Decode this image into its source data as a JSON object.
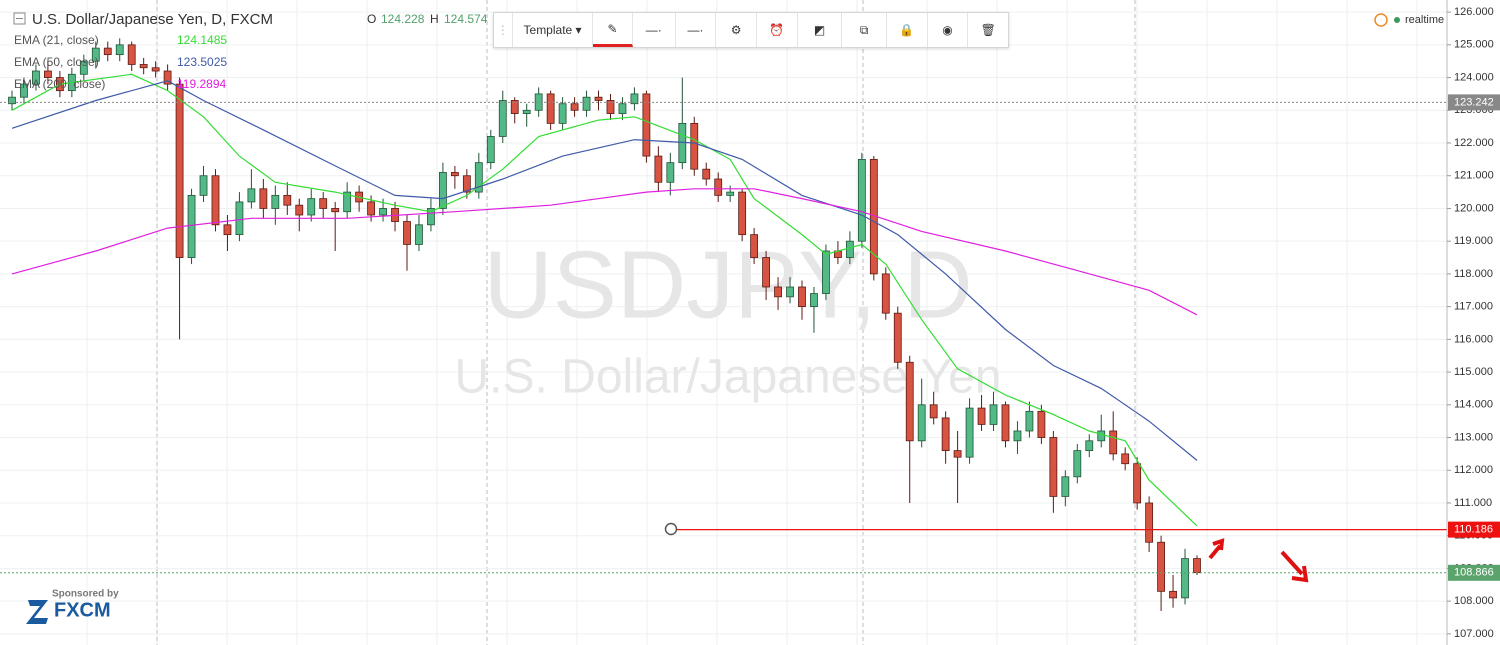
{
  "header": {
    "symbol_title": "U.S. Dollar/Japanese Yen, D, FXCM",
    "o_label": "O",
    "o_value": 124.228,
    "h_label": "H",
    "h_value": 124.574
  },
  "toolbar": {
    "template": "Template"
  },
  "status": "realtime",
  "sponsor": {
    "label": "Sponsored by",
    "brand": "FXCM"
  },
  "chart_data": {
    "type": "candlestick",
    "watermark": "USDJPY, D",
    "watermark_subtitle": "U.S. Dollar/Japanese Yen",
    "up_color": "#53b987",
    "down_color": "#d75442",
    "ohlc": [
      [
        123.2,
        123.6,
        123.0,
        123.4
      ],
      [
        123.4,
        124.0,
        123.2,
        123.8
      ],
      [
        123.8,
        124.4,
        123.6,
        124.2
      ],
      [
        124.2,
        124.5,
        123.8,
        124.0
      ],
      [
        124.0,
        124.2,
        123.4,
        123.6
      ],
      [
        123.6,
        124.3,
        123.4,
        124.1
      ],
      [
        124.1,
        124.7,
        123.9,
        124.5
      ],
      [
        124.5,
        125.1,
        124.3,
        124.9
      ],
      [
        124.9,
        125.1,
        124.5,
        124.7
      ],
      [
        124.7,
        125.2,
        124.5,
        125.0
      ],
      [
        125.0,
        125.1,
        124.2,
        124.4
      ],
      [
        124.4,
        124.6,
        124.1,
        124.3
      ],
      [
        124.3,
        124.5,
        124.0,
        124.2
      ],
      [
        124.2,
        124.4,
        123.6,
        123.8
      ],
      [
        123.8,
        124.0,
        116.0,
        118.5
      ],
      [
        118.5,
        120.6,
        118.3,
        120.4
      ],
      [
        120.4,
        121.3,
        120.2,
        121.0
      ],
      [
        121.0,
        121.2,
        119.3,
        119.5
      ],
      [
        119.5,
        119.8,
        118.7,
        119.2
      ],
      [
        119.2,
        120.5,
        119.0,
        120.2
      ],
      [
        120.2,
        121.2,
        120.0,
        120.6
      ],
      [
        120.6,
        120.9,
        119.7,
        120.0
      ],
      [
        120.0,
        120.7,
        119.5,
        120.4
      ],
      [
        120.4,
        120.8,
        119.8,
        120.1
      ],
      [
        120.1,
        120.3,
        119.3,
        119.8
      ],
      [
        119.8,
        120.6,
        119.6,
        120.3
      ],
      [
        120.3,
        120.5,
        119.7,
        120.0
      ],
      [
        120.0,
        120.2,
        118.7,
        119.9
      ],
      [
        119.9,
        120.8,
        119.7,
        120.5
      ],
      [
        120.5,
        120.7,
        119.9,
        120.2
      ],
      [
        120.2,
        120.4,
        119.6,
        119.8
      ],
      [
        119.8,
        120.3,
        119.6,
        120.0
      ],
      [
        120.0,
        120.2,
        119.3,
        119.6
      ],
      [
        119.6,
        119.8,
        118.1,
        118.9
      ],
      [
        118.9,
        119.8,
        118.7,
        119.5
      ],
      [
        119.5,
        120.3,
        119.3,
        120.0
      ],
      [
        120.0,
        121.4,
        119.8,
        121.1
      ],
      [
        121.1,
        121.3,
        120.6,
        121.0
      ],
      [
        121.0,
        121.2,
        120.3,
        120.5
      ],
      [
        120.5,
        121.7,
        120.3,
        121.4
      ],
      [
        121.4,
        122.4,
        121.2,
        122.2
      ],
      [
        122.2,
        123.6,
        122.0,
        123.3
      ],
      [
        123.3,
        123.4,
        122.6,
        122.9
      ],
      [
        122.9,
        123.2,
        122.5,
        123.0
      ],
      [
        123.0,
        123.7,
        122.8,
        123.5
      ],
      [
        123.5,
        123.6,
        122.4,
        122.6
      ],
      [
        122.6,
        123.4,
        122.4,
        123.2
      ],
      [
        123.2,
        123.4,
        122.8,
        123.0
      ],
      [
        123.0,
        123.6,
        122.8,
        123.4
      ],
      [
        123.4,
        123.6,
        123.0,
        123.3
      ],
      [
        123.3,
        123.5,
        122.7,
        122.9
      ],
      [
        122.9,
        123.4,
        122.7,
        123.2
      ],
      [
        123.2,
        123.7,
        123.0,
        123.5
      ],
      [
        123.5,
        123.6,
        121.4,
        121.6
      ],
      [
        121.6,
        121.9,
        120.5,
        120.8
      ],
      [
        120.8,
        121.7,
        120.4,
        121.4
      ],
      [
        121.4,
        124.0,
        121.2,
        122.6
      ],
      [
        122.6,
        122.8,
        121.0,
        121.2
      ],
      [
        121.2,
        121.4,
        120.7,
        120.9
      ],
      [
        120.9,
        121.1,
        120.2,
        120.4
      ],
      [
        120.4,
        120.7,
        120.2,
        120.5
      ],
      [
        120.5,
        120.6,
        119.0,
        119.2
      ],
      [
        119.2,
        119.4,
        118.3,
        118.5
      ],
      [
        118.5,
        118.7,
        117.2,
        117.6
      ],
      [
        117.6,
        117.9,
        116.9,
        117.3
      ],
      [
        117.3,
        117.9,
        117.1,
        117.6
      ],
      [
        117.6,
        117.8,
        116.6,
        117.0
      ],
      [
        117.0,
        117.6,
        116.2,
        117.4
      ],
      [
        117.4,
        118.9,
        117.2,
        118.7
      ],
      [
        118.7,
        119.0,
        118.3,
        118.5
      ],
      [
        118.5,
        119.3,
        118.3,
        119.0
      ],
      [
        119.0,
        121.7,
        118.8,
        121.5
      ],
      [
        121.5,
        121.6,
        117.8,
        118.0
      ],
      [
        118.0,
        118.2,
        116.6,
        116.8
      ],
      [
        116.8,
        117.0,
        115.1,
        115.3
      ],
      [
        115.3,
        115.5,
        111.0,
        112.9
      ],
      [
        112.9,
        114.8,
        112.7,
        114.0
      ],
      [
        114.0,
        114.4,
        113.4,
        113.6
      ],
      [
        113.6,
        113.8,
        112.2,
        112.6
      ],
      [
        112.6,
        113.2,
        111.0,
        112.4
      ],
      [
        112.4,
        114.2,
        112.2,
        113.9
      ],
      [
        113.9,
        114.3,
        113.2,
        113.4
      ],
      [
        113.4,
        114.4,
        113.2,
        114.0
      ],
      [
        114.0,
        114.1,
        112.7,
        112.9
      ],
      [
        112.9,
        113.5,
        112.5,
        113.2
      ],
      [
        113.2,
        114.1,
        113.0,
        113.8
      ],
      [
        113.8,
        114.0,
        112.8,
        113.0
      ],
      [
        113.0,
        113.2,
        110.7,
        111.2
      ],
      [
        111.2,
        112.0,
        110.9,
        111.8
      ],
      [
        111.8,
        112.8,
        111.6,
        112.6
      ],
      [
        112.6,
        113.1,
        112.4,
        112.9
      ],
      [
        112.9,
        113.7,
        112.7,
        113.2
      ],
      [
        113.2,
        113.8,
        112.3,
        112.5
      ],
      [
        112.5,
        112.7,
        112.0,
        112.2
      ],
      [
        112.2,
        112.4,
        110.8,
        111.0
      ],
      [
        111.0,
        111.2,
        109.5,
        109.8
      ],
      [
        109.8,
        110.0,
        107.7,
        108.3
      ],
      [
        108.3,
        108.8,
        107.8,
        108.1
      ],
      [
        108.1,
        109.6,
        107.9,
        109.3
      ],
      [
        109.3,
        109.4,
        108.8,
        108.87
      ]
    ],
    "series": [
      {
        "name": "EMA (21, close)",
        "color": "#33dd33",
        "last_value": 124.1485,
        "x": [
          0,
          4,
          10,
          13,
          16,
          19,
          22,
          27,
          32,
          35,
          38,
          41,
          44,
          49,
          52,
          57,
          60,
          62,
          66,
          68,
          71,
          73,
          76,
          79,
          83,
          87,
          90,
          93,
          95,
          99
        ],
        "values": [
          123.0,
          123.8,
          124.1,
          123.6,
          122.8,
          121.6,
          120.8,
          120.5,
          120.1,
          119.9,
          120.4,
          121.2,
          122.2,
          122.7,
          122.8,
          122.1,
          121.5,
          120.3,
          119.2,
          118.6,
          118.9,
          118.3,
          116.6,
          115.1,
          114.3,
          113.7,
          113.2,
          112.9,
          111.7,
          110.3
        ]
      },
      {
        "name": "EMA (50, close)",
        "color": "#3f5aa8",
        "last_value": 123.5025,
        "x": [
          0,
          7,
          13,
          16,
          21,
          27,
          32,
          36,
          41,
          46,
          52,
          57,
          61,
          66,
          71,
          74,
          78,
          83,
          87,
          91,
          95,
          99
        ],
        "values": [
          122.45,
          123.3,
          123.9,
          123.3,
          122.4,
          121.3,
          120.4,
          120.3,
          120.9,
          121.6,
          122.1,
          122.0,
          121.5,
          120.4,
          119.8,
          119.2,
          118.0,
          116.3,
          115.2,
          114.5,
          113.5,
          112.3
        ]
      },
      {
        "name": "EMA (200, close)",
        "color": "#e020e0",
        "last_value": 119.2894,
        "x": [
          0,
          7,
          13,
          20,
          28,
          37,
          45,
          53,
          57,
          62,
          66,
          71,
          76,
          83,
          89,
          95,
          99
        ],
        "values": [
          118.0,
          118.7,
          119.4,
          119.7,
          119.7,
          119.9,
          120.1,
          120.5,
          120.6,
          120.6,
          120.3,
          119.9,
          119.3,
          118.7,
          118.1,
          117.5,
          116.75
        ]
      }
    ],
    "price_lines": [
      {
        "value": 123.242,
        "color": "#888888",
        "style": "dashed"
      },
      {
        "value": 110.186,
        "color": "#ee1111",
        "style": "solid"
      },
      {
        "value": 108.866,
        "color": "#5aa36c",
        "style": "dashed"
      }
    ],
    "ylim": [
      106.66,
      126.37
    ],
    "yticks": [
      {
        "value": 126,
        "label": "126.000"
      },
      {
        "value": 125,
        "label": "125.000"
      },
      {
        "value": 124,
        "label": "124.000"
      },
      {
        "value": 123,
        "label": "123.000"
      },
      {
        "value": 122,
        "label": "122.000"
      },
      {
        "value": 121,
        "label": "121.000"
      },
      {
        "value": 120,
        "label": "120.000"
      },
      {
        "value": 119,
        "label": "119.000"
      },
      {
        "value": 118,
        "label": "118.000"
      },
      {
        "value": 117,
        "label": "117.000"
      },
      {
        "value": 116,
        "label": "116.000"
      },
      {
        "value": 115,
        "label": "115.000"
      },
      {
        "value": 114,
        "label": "114.000"
      },
      {
        "value": 113,
        "label": "113.000"
      },
      {
        "value": 112,
        "label": "112.000"
      },
      {
        "value": 111,
        "label": "111.000"
      },
      {
        "value": 110,
        "label": "110.000"
      },
      {
        "value": 109,
        "label": "109.000"
      },
      {
        "value": 108,
        "label": "108.000"
      },
      {
        "value": 107,
        "label": "107.000"
      }
    ],
    "grid": true
  }
}
